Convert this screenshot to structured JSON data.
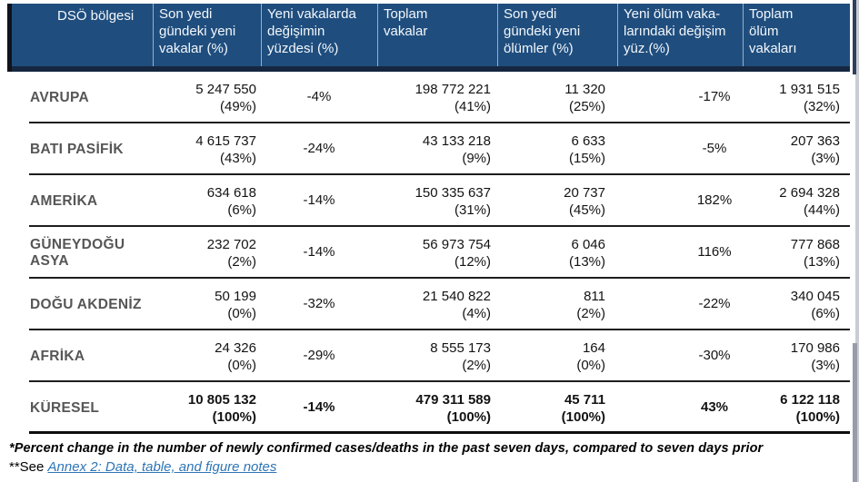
{
  "colors": {
    "header_bg": "#1F4E7E",
    "header_text": "#FFFFFF",
    "link_blue": "#2E75B6",
    "row_line": "#1D1D1D",
    "region_text": "#565656"
  },
  "table": {
    "columns": [
      {
        "label": "DSÖ bölgesi"
      },
      {
        "label": "Son yedi gündeki yeni vakalar (%)"
      },
      {
        "label": "Yeni vakalarda değişimin yüzdesi (%)"
      },
      {
        "label": "Toplam vakalar"
      },
      {
        "label": "Son yedi gündeki yeni ölümler (%)"
      },
      {
        "label": "Yeni ölüm vaka-larındaki değişim yüz.(%)"
      },
      {
        "label": "Toplam ölüm vakaları"
      }
    ],
    "rows": [
      {
        "region": "AVRUPA",
        "new_cases": "5 247 550",
        "new_cases_pct": "(49%)",
        "case_change": "-4%",
        "total_cases": "198 772 221",
        "total_cases_pct": "(41%)",
        "new_deaths": "11 320",
        "new_deaths_pct": "(25%)",
        "death_change": "-17%",
        "total_deaths": "1 931 515",
        "total_deaths_pct": "(32%)"
      },
      {
        "region": "BATI PASİFİK",
        "new_cases": "4 615 737",
        "new_cases_pct": "(43%)",
        "case_change": "-24%",
        "total_cases": "43 133 218",
        "total_cases_pct": "(9%)",
        "new_deaths": "6 633",
        "new_deaths_pct": "(15%)",
        "death_change": "-5%",
        "total_deaths": "207 363",
        "total_deaths_pct": "(3%)"
      },
      {
        "region": "AMERİKA",
        "new_cases": "634 618",
        "new_cases_pct": "(6%)",
        "case_change": "-14%",
        "total_cases": "150 335 637",
        "total_cases_pct": "(31%)",
        "new_deaths": "20 737",
        "new_deaths_pct": "(45%)",
        "death_change": "182%",
        "total_deaths": "2 694 328",
        "total_deaths_pct": "(44%)"
      },
      {
        "region": "GÜNEYDOĞU ASYA",
        "new_cases": "232 702",
        "new_cases_pct": "(2%)",
        "case_change": "-14%",
        "total_cases": "56 973 754",
        "total_cases_pct": "(12%)",
        "new_deaths": "6 046",
        "new_deaths_pct": "(13%)",
        "death_change": "116%",
        "total_deaths": "777 868",
        "total_deaths_pct": "(13%)"
      },
      {
        "region": "DOĞU AKDENİZ",
        "new_cases": "50 199",
        "new_cases_pct": "(0%)",
        "case_change": "-32%",
        "total_cases": "21 540 822",
        "total_cases_pct": "(4%)",
        "new_deaths": "811",
        "new_deaths_pct": "(2%)",
        "death_change": "-22%",
        "total_deaths": "340 045",
        "total_deaths_pct": "(6%)"
      },
      {
        "region": "AFRİKA",
        "new_cases": "24 326",
        "new_cases_pct": "(0%)",
        "case_change": "-29%",
        "total_cases": "8 555 173",
        "total_cases_pct": "(2%)",
        "new_deaths": "164",
        "new_deaths_pct": "(0%)",
        "death_change": "-30%",
        "total_deaths": "170 986",
        "total_deaths_pct": "(3%)"
      },
      {
        "region": "KÜRESEL",
        "new_cases": "10 805 132",
        "new_cases_pct": "(100%)",
        "case_change": "-14%",
        "total_cases": "479 311 589",
        "total_cases_pct": "(100%)",
        "new_deaths": "45 711",
        "new_deaths_pct": "(100%)",
        "death_change": "43%",
        "total_deaths": "6 122 118",
        "total_deaths_pct": "(100%)"
      }
    ]
  },
  "footnotes": {
    "note1": "*Percent change in the number of newly confirmed cases/deaths in the past seven days, compared to seven days prior",
    "note2_prefix": "**See ",
    "note2_link": "Annex 2: Data, table, and figure notes"
  }
}
